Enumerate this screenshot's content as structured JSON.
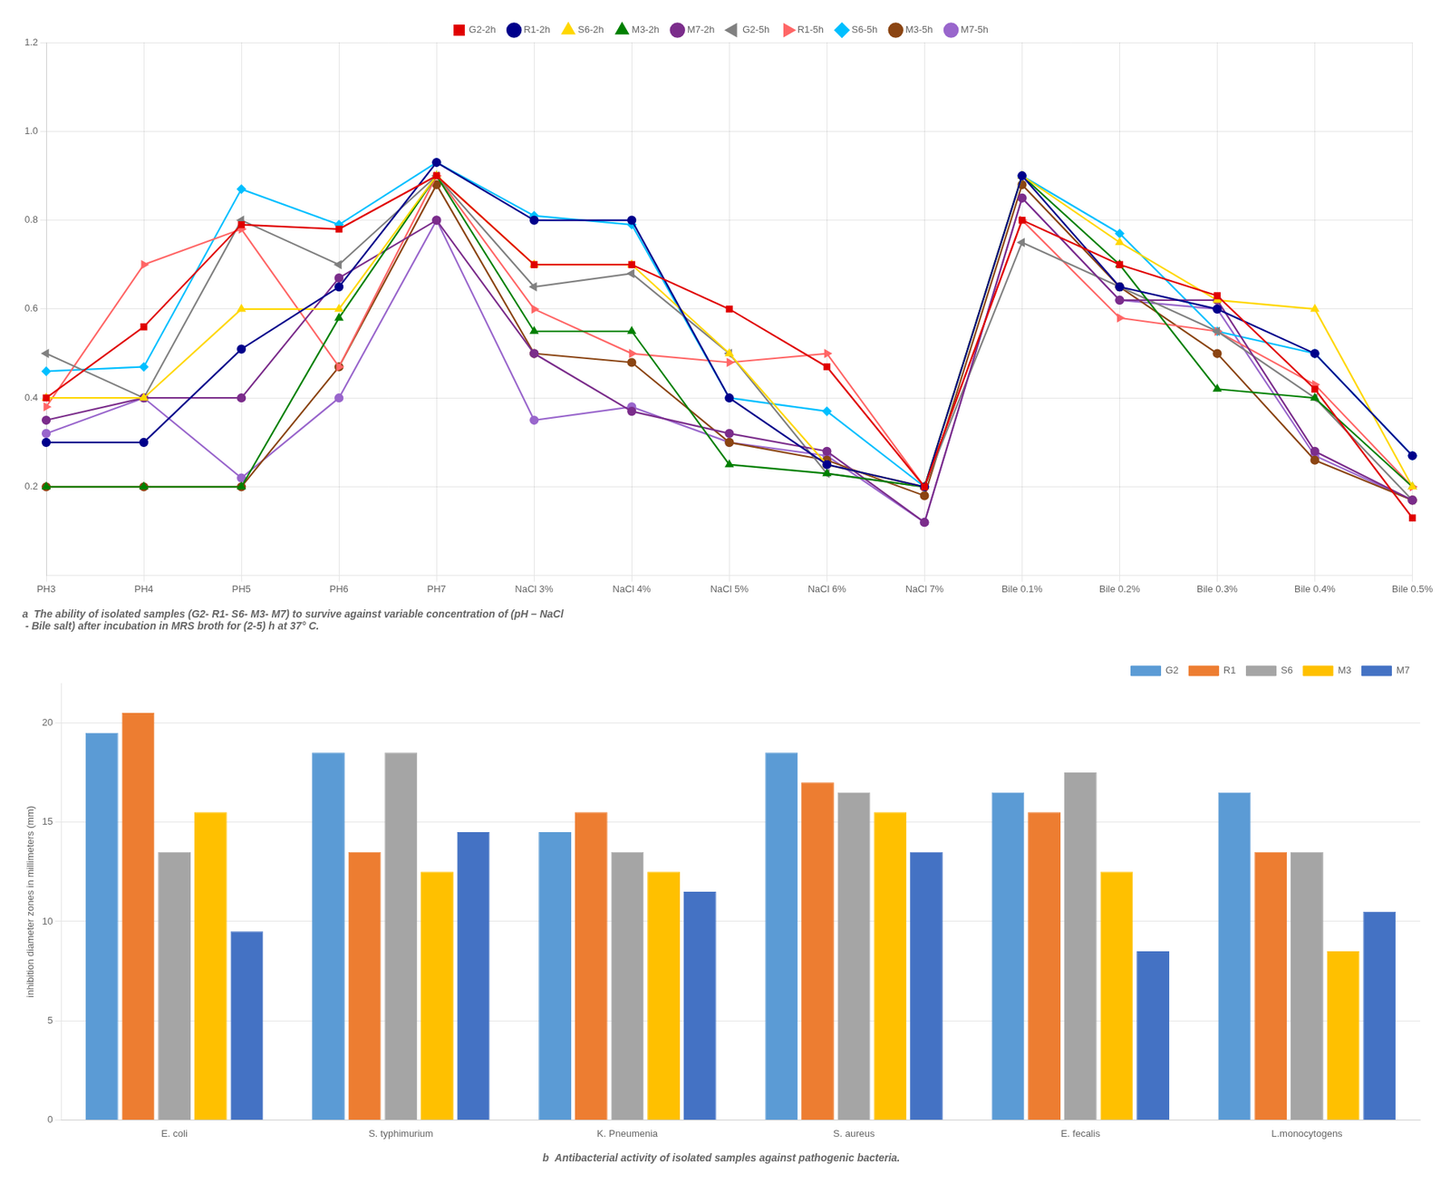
{
  "chart_data": [
    {
      "type": "line",
      "subtitle": "a  The ability of isolated samples (G2- R1- S6- M3- M7) to survive against variable concentration of (pH – NaCl\n - Bile salt) after incubation in MRS broth for (2-5) h at 37° C.",
      "categories": [
        "PH3",
        "PH4",
        "PH5",
        "PH6",
        "PH7",
        "NaCl 3%",
        "NaCl 4%",
        "NaCl 5%",
        "NaCl 6%",
        "NaCl 7%",
        "Bile 0.1%",
        "Bile 0.2%",
        "Bile 0.3%",
        "Bile 0.4%",
        "Bile 0.5%"
      ],
      "series": [
        {
          "name": "G2-2h",
          "color": "#e00000",
          "marker": "square",
          "line_style": "solid",
          "values": [
            0.4,
            0.56,
            0.79,
            0.78,
            0.9,
            0.7,
            0.7,
            0.6,
            0.47,
            0.2,
            0.8,
            0.7,
            0.63,
            0.42,
            0.13
          ]
        },
        {
          "name": "R1-2h",
          "color": "#00008B",
          "marker": "circle",
          "line_style": "solid",
          "values": [
            0.3,
            0.3,
            0.51,
            0.65,
            0.93,
            0.8,
            0.8,
            0.4,
            0.25,
            0.2,
            0.9,
            0.65,
            0.6,
            0.5,
            0.27
          ]
        },
        {
          "name": "S6-2h",
          "color": "#FFD700",
          "marker": "triangle",
          "line_style": "solid",
          "values": [
            0.4,
            0.4,
            0.6,
            0.6,
            0.9,
            0.7,
            0.7,
            0.5,
            0.25,
            0.2,
            0.9,
            0.75,
            0.62,
            0.6,
            0.2
          ]
        },
        {
          "name": "M3-2h",
          "color": "#008000",
          "marker": "triangle",
          "line_style": "solid",
          "values": [
            0.2,
            0.2,
            0.2,
            0.58,
            0.9,
            0.55,
            0.55,
            0.25,
            0.23,
            0.2,
            0.9,
            0.7,
            0.42,
            0.4,
            0.2
          ]
        },
        {
          "name": "M7-2h",
          "color": "#7B2D8B",
          "marker": "circle",
          "line_style": "solid",
          "values": [
            0.35,
            0.4,
            0.4,
            0.67,
            0.8,
            0.5,
            0.37,
            0.32,
            0.28,
            0.12,
            0.85,
            0.62,
            0.62,
            0.28,
            0.17
          ]
        },
        {
          "name": "G2-5h",
          "color": "#808080",
          "marker": "triangle-left",
          "line_style": "solid",
          "values": [
            0.5,
            0.4,
            0.8,
            0.7,
            0.9,
            0.65,
            0.68,
            0.5,
            0.23,
            0.2,
            0.75,
            0.65,
            0.55,
            0.4,
            0.17
          ]
        },
        {
          "name": "R1-5h",
          "color": "#FF6666",
          "marker": "triangle-right",
          "line_style": "solid",
          "values": [
            0.38,
            0.7,
            0.78,
            0.47,
            0.9,
            0.6,
            0.5,
            0.48,
            0.5,
            0.2,
            0.8,
            0.58,
            0.55,
            0.43,
            0.2
          ]
        },
        {
          "name": "S6-5h",
          "color": "#00BFFF",
          "marker": "diamond",
          "line_style": "solid",
          "values": [
            0.46,
            0.47,
            0.87,
            0.79,
            0.93,
            0.81,
            0.79,
            0.4,
            0.37,
            0.2,
            0.9,
            0.77,
            0.55,
            0.5,
            0.27
          ]
        },
        {
          "name": "M3-5h",
          "color": "#8B4513",
          "marker": "circle",
          "line_style": "solid",
          "values": [
            0.2,
            0.2,
            0.2,
            0.47,
            0.88,
            0.5,
            0.48,
            0.3,
            0.26,
            0.18,
            0.88,
            0.65,
            0.5,
            0.26,
            0.17
          ]
        },
        {
          "name": "M7-5h",
          "color": "#9966CC",
          "marker": "circle",
          "line_style": "solid",
          "values": [
            0.32,
            0.4,
            0.22,
            0.4,
            0.8,
            0.35,
            0.38,
            0.3,
            0.27,
            0.12,
            0.85,
            0.62,
            0.6,
            0.27,
            0.17
          ]
        }
      ],
      "ylim": [
        0.0,
        1.2
      ],
      "yticks": [
        0.2,
        0.4,
        0.6,
        0.8,
        {
          "value": 1.0,
          "label": "1.0"
        },
        1.2
      ],
      "grid": true,
      "legend": "top"
    },
    {
      "type": "bar",
      "subtitle": "b  Antibacterial activity of isolated samples against pathogenic bacteria.",
      "categories": [
        "E. coli",
        "S. typhimurium",
        "K. Pneumenia",
        "S. aureus",
        "E. fecalis",
        "L.monocytogens"
      ],
      "series": [
        {
          "name": "G2",
          "color": "#5B9BD5",
          "values": [
            19.5,
            18.5,
            14.5,
            18.5,
            16.5,
            16.5
          ]
        },
        {
          "name": "R1",
          "color": "#ED7D31",
          "values": [
            20.5,
            13.5,
            15.5,
            17.0,
            15.5,
            13.5
          ]
        },
        {
          "name": "S6",
          "color": "#A5A5A5",
          "values": [
            13.5,
            18.5,
            13.5,
            16.5,
            17.5,
            13.5
          ]
        },
        {
          "name": "M3",
          "color": "#FFC000",
          "values": [
            15.5,
            12.5,
            12.5,
            15.5,
            12.5,
            8.5
          ]
        },
        {
          "name": "M7",
          "color": "#4472C4",
          "values": [
            9.5,
            14.5,
            11.5,
            13.5,
            8.5,
            10.5
          ]
        }
      ],
      "ylabel": "inhibition diameter zones in millimeters (mm)",
      "ylim": [
        0,
        22
      ],
      "yticks": [
        0,
        5,
        10,
        15,
        20
      ],
      "grid": "y",
      "legend": "upper right"
    }
  ]
}
